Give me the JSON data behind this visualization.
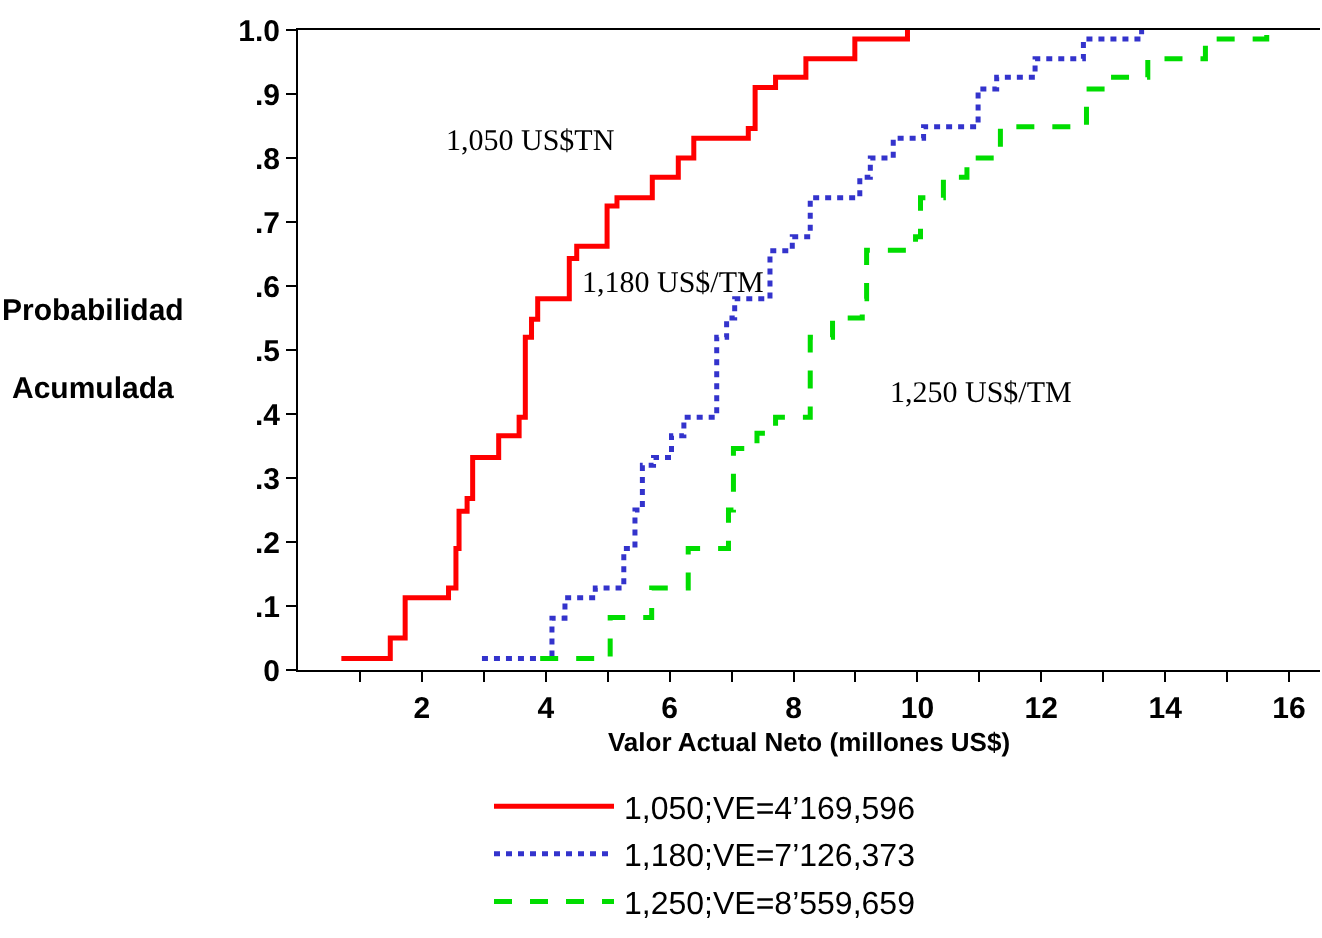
{
  "chart_data": {
    "type": "step",
    "xlabel": "Valor Actual Neto (millones US$)",
    "ylabel": "Probabilidad\nAcumulada",
    "xlim": [
      0,
      16.5
    ],
    "xticks": [
      {
        "value": 1,
        "label": null
      },
      2,
      {
        "value": 3,
        "label": null
      },
      4,
      {
        "value": 5,
        "label": null
      },
      6,
      {
        "value": 7,
        "label": null
      },
      8,
      {
        "value": 9,
        "label": null
      },
      10,
      {
        "value": 11,
        "label": null
      },
      12,
      {
        "value": 13,
        "label": null
      },
      14,
      {
        "value": 15,
        "label": null
      },
      16
    ],
    "ylim": [
      0,
      1
    ],
    "yticks": [
      0,
      {
        "value": 0.1,
        "label": ".1"
      },
      {
        "value": 0.2,
        "label": ".2"
      },
      {
        "value": 0.3,
        "label": ".3"
      },
      {
        "value": 0.4,
        "label": ".4"
      },
      {
        "value": 0.5,
        "label": ".5"
      },
      {
        "value": 0.6,
        "label": ".6"
      },
      {
        "value": 0.7,
        "label": ".7"
      },
      {
        "value": 0.8,
        "label": ".8"
      },
      {
        "value": 0.9,
        "label": ".9"
      },
      {
        "value": 1,
        "label": "1.0"
      }
    ],
    "legend": "bottom",
    "marker": "none",
    "annotations": [
      "1,050 US$TN",
      "1,180 US$/TM",
      "1,250 US$/TM"
    ],
    "series": [
      {
        "name": "1,050;VE=4’169,596",
        "color": "#ff0000",
        "line_style": "solid",
        "x": [
          0.7,
          1.49,
          1.73,
          2.43,
          2.55,
          2.6,
          2.73,
          2.82,
          3.24,
          3.57,
          3.67,
          3.77,
          3.87,
          4.38,
          4.5,
          4.99,
          5.15,
          5.72,
          6.14,
          6.39,
          7.27,
          7.38,
          7.71,
          8.2,
          8.99,
          9.84
        ],
        "values": [
          0.018,
          0.05,
          0.113,
          0.128,
          0.19,
          0.248,
          0.268,
          0.332,
          0.366,
          0.395,
          0.52,
          0.548,
          0.58,
          0.643,
          0.662,
          0.725,
          0.738,
          0.77,
          0.8,
          0.831,
          0.846,
          0.91,
          0.926,
          0.955,
          0.986,
          1.0
        ]
      },
      {
        "name": "1,180;VE=7’126,373",
        "color": "#3333cc",
        "line_style": "dotted",
        "x": [
          2.97,
          4.1,
          4.31,
          4.8,
          5.26,
          5.44,
          5.56,
          5.74,
          6.03,
          6.23,
          6.76,
          6.92,
          7.05,
          7.62,
          7.98,
          8.27,
          9.07,
          9.24,
          9.61,
          10.1,
          10.98,
          11.28,
          11.9,
          12.68,
          13.62
        ],
        "values": [
          0.018,
          0.081,
          0.113,
          0.128,
          0.19,
          0.25,
          0.32,
          0.332,
          0.366,
          0.395,
          0.52,
          0.55,
          0.58,
          0.655,
          0.677,
          0.738,
          0.77,
          0.8,
          0.831,
          0.849,
          0.908,
          0.926,
          0.955,
          0.986,
          1.0
        ]
      },
      {
        "name": "1,250;VE=8’559,659",
        "color": "#00dd00",
        "line_style": "dashed",
        "x": [
          3.91,
          5.04,
          5.71,
          6.3,
          6.95,
          7.03,
          7.41,
          7.71,
          8.27,
          8.63,
          9.11,
          9.18,
          9.97,
          10.05,
          10.42,
          10.8,
          11.34,
          12.73,
          13.11,
          13.72,
          14.65,
          15.64
        ],
        "values": [
          0.018,
          0.082,
          0.128,
          0.19,
          0.25,
          0.346,
          0.37,
          0.395,
          0.52,
          0.55,
          0.58,
          0.656,
          0.677,
          0.738,
          0.77,
          0.8,
          0.849,
          0.908,
          0.926,
          0.955,
          0.986,
          1.0
        ]
      }
    ]
  }
}
